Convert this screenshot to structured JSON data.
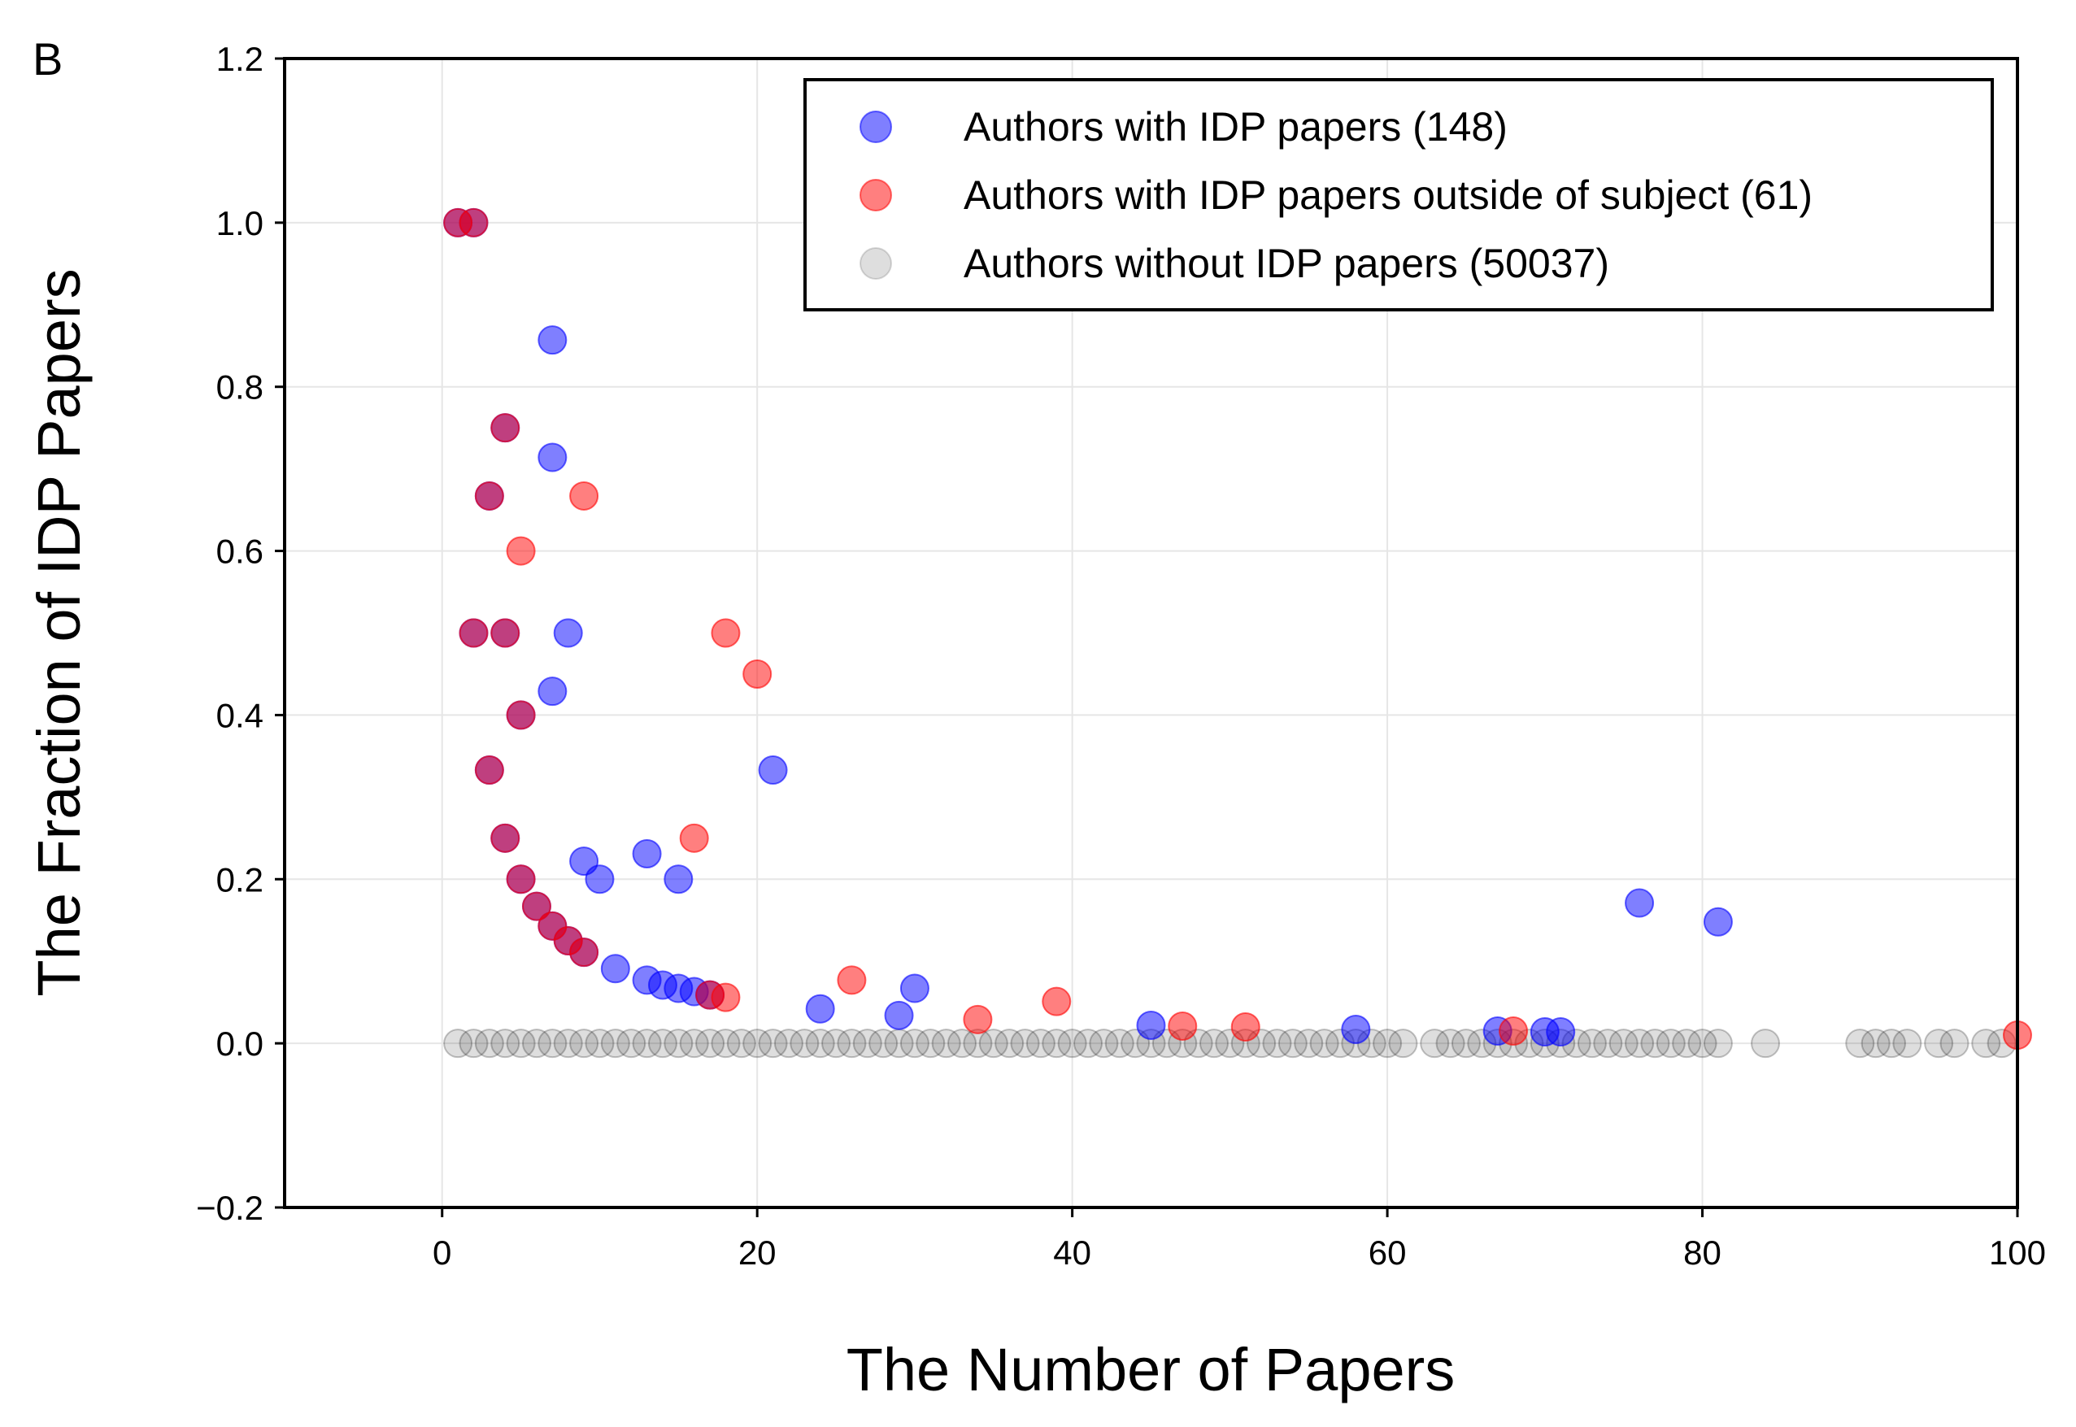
{
  "panel_label": "B",
  "chart_data": {
    "type": "scatter",
    "xlabel": "The Number of Papers",
    "ylabel": "The Fraction of IDP Papers",
    "xlim": [
      -10,
      100
    ],
    "ylim": [
      -0.2,
      1.2
    ],
    "xticks": [
      0,
      20,
      40,
      60,
      80,
      100
    ],
    "xtick_labels": [
      "0",
      "20",
      "40",
      "60",
      "80",
      "100"
    ],
    "yticks": [
      -0.2,
      0.0,
      0.2,
      0.4,
      0.6,
      0.8,
      1.0,
      1.2
    ],
    "ytick_labels": [
      "−0.2",
      "0.0",
      "0.2",
      "0.4",
      "0.6",
      "0.8",
      "1.0",
      "1.2"
    ],
    "grid": true,
    "legend_position": "top-right",
    "series": [
      {
        "name": "Authors without IDP papers (50037)",
        "color": "#000000",
        "opacity": 0.13,
        "points": [
          [
            1,
            0
          ],
          [
            2,
            0
          ],
          [
            3,
            0
          ],
          [
            4,
            0
          ],
          [
            5,
            0
          ],
          [
            6,
            0
          ],
          [
            7,
            0
          ],
          [
            8,
            0
          ],
          [
            9,
            0
          ],
          [
            10,
            0
          ],
          [
            11,
            0
          ],
          [
            12,
            0
          ],
          [
            13,
            0
          ],
          [
            14,
            0
          ],
          [
            15,
            0
          ],
          [
            16,
            0
          ],
          [
            17,
            0
          ],
          [
            18,
            0
          ],
          [
            19,
            0
          ],
          [
            20,
            0
          ],
          [
            21,
            0
          ],
          [
            22,
            0
          ],
          [
            23,
            0
          ],
          [
            24,
            0
          ],
          [
            25,
            0
          ],
          [
            26,
            0
          ],
          [
            27,
            0
          ],
          [
            28,
            0
          ],
          [
            29,
            0
          ],
          [
            30,
            0
          ],
          [
            31,
            0
          ],
          [
            32,
            0
          ],
          [
            33,
            0
          ],
          [
            34,
            0
          ],
          [
            35,
            0
          ],
          [
            36,
            0
          ],
          [
            37,
            0
          ],
          [
            38,
            0
          ],
          [
            39,
            0
          ],
          [
            40,
            0
          ],
          [
            41,
            0
          ],
          [
            42,
            0
          ],
          [
            43,
            0
          ],
          [
            44,
            0
          ],
          [
            45,
            0
          ],
          [
            46,
            0
          ],
          [
            47,
            0
          ],
          [
            48,
            0
          ],
          [
            49,
            0
          ],
          [
            50,
            0
          ],
          [
            51,
            0
          ],
          [
            52,
            0
          ],
          [
            53,
            0
          ],
          [
            54,
            0
          ],
          [
            55,
            0
          ],
          [
            56,
            0
          ],
          [
            57,
            0
          ],
          [
            58,
            0
          ],
          [
            59,
            0
          ],
          [
            60,
            0
          ],
          [
            61,
            0
          ],
          [
            63,
            0
          ],
          [
            64,
            0
          ],
          [
            65,
            0
          ],
          [
            66,
            0
          ],
          [
            67,
            0
          ],
          [
            68,
            0
          ],
          [
            69,
            0
          ],
          [
            70,
            0
          ],
          [
            71,
            0
          ],
          [
            72,
            0
          ],
          [
            73,
            0
          ],
          [
            74,
            0
          ],
          [
            75,
            0
          ],
          [
            76,
            0
          ],
          [
            77,
            0
          ],
          [
            78,
            0
          ],
          [
            79,
            0
          ],
          [
            80,
            0
          ],
          [
            81,
            0
          ],
          [
            84,
            0
          ],
          [
            90,
            0
          ],
          [
            91,
            0
          ],
          [
            92,
            0
          ],
          [
            93,
            0
          ],
          [
            95,
            0
          ],
          [
            96,
            0
          ],
          [
            98,
            0
          ],
          [
            99,
            0
          ]
        ]
      },
      {
        "name": "Authors with IDP papers (148)",
        "color": "#0000ff",
        "opacity": 0.5,
        "points": [
          [
            1,
            1.0
          ],
          [
            2,
            1.0
          ],
          [
            2,
            0.5
          ],
          [
            3,
            0.667
          ],
          [
            3,
            0.333
          ],
          [
            4,
            0.75
          ],
          [
            4,
            0.5
          ],
          [
            4,
            0.25
          ],
          [
            5,
            0.4
          ],
          [
            5,
            0.2
          ],
          [
            6,
            0.167
          ],
          [
            7,
            0.857
          ],
          [
            7,
            0.714
          ],
          [
            7,
            0.429
          ],
          [
            7,
            0.143
          ],
          [
            8,
            0.5
          ],
          [
            8,
            0.125
          ],
          [
            9,
            0.222
          ],
          [
            9,
            0.111
          ],
          [
            10,
            0.2
          ],
          [
            11,
            0.091
          ],
          [
            13,
            0.231
          ],
          [
            13,
            0.077
          ],
          [
            14,
            0.071
          ],
          [
            15,
            0.2
          ],
          [
            15,
            0.067
          ],
          [
            16,
            0.063
          ],
          [
            17,
            0.059
          ],
          [
            21,
            0.333
          ],
          [
            24,
            0.042
          ],
          [
            29,
            0.034
          ],
          [
            30,
            0.067
          ],
          [
            45,
            0.022
          ],
          [
            58,
            0.017
          ],
          [
            67,
            0.015
          ],
          [
            70,
            0.014
          ],
          [
            71,
            0.014
          ],
          [
            76,
            0.171
          ],
          [
            81,
            0.148
          ]
        ]
      },
      {
        "name": "Authors with IDP papers outside of subject (61)",
        "color": "#ff0000",
        "opacity": 0.5,
        "points": [
          [
            1,
            1.0
          ],
          [
            2,
            1.0
          ],
          [
            2,
            0.5
          ],
          [
            3,
            0.667
          ],
          [
            3,
            0.333
          ],
          [
            4,
            0.75
          ],
          [
            4,
            0.5
          ],
          [
            4,
            0.25
          ],
          [
            5,
            0.6
          ],
          [
            5,
            0.4
          ],
          [
            5,
            0.2
          ],
          [
            6,
            0.167
          ],
          [
            7,
            0.143
          ],
          [
            8,
            0.125
          ],
          [
            9,
            0.667
          ],
          [
            9,
            0.111
          ],
          [
            16,
            0.25
          ],
          [
            17,
            0.059
          ],
          [
            18,
            0.5
          ],
          [
            18,
            0.056
          ],
          [
            20,
            0.45
          ],
          [
            26,
            0.077
          ],
          [
            34,
            0.029
          ],
          [
            39,
            0.051
          ],
          [
            47,
            0.021
          ],
          [
            51,
            0.02
          ],
          [
            68,
            0.015
          ],
          [
            100,
            0.01
          ]
        ]
      }
    ]
  }
}
